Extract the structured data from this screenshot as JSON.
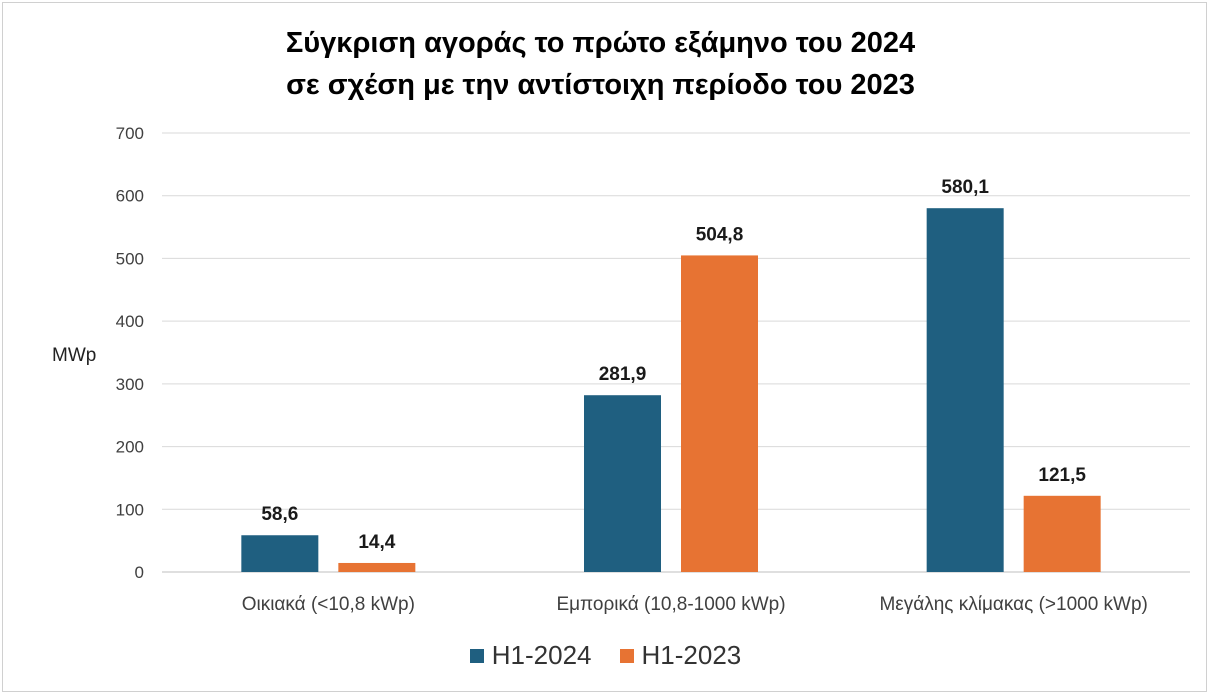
{
  "chart_data": {
    "type": "bar",
    "title": [
      "Σύγκριση αγοράς το πρώτο εξάμηνο του 2024",
      "σε σχέση με την αντίστοιχη περίοδο του 2023"
    ],
    "ylabel": "MWp",
    "xlabel": "",
    "ylim": [
      0,
      700
    ],
    "yticks": [
      0,
      100,
      200,
      300,
      400,
      500,
      600,
      700
    ],
    "grid": true,
    "legend_position": "bottom",
    "categories": [
      "Οικιακά (<10,8 kWp)",
      "Εμπορικά (10,8-1000 kWp)",
      "Μεγάλης κλίμακας (>1000 kWp)"
    ],
    "series": [
      {
        "name": "H1-2024",
        "color": "#1f5f80",
        "values": [
          58.6,
          281.9,
          580.1
        ],
        "labels": [
          "58,6",
          "281,9",
          "580,1"
        ]
      },
      {
        "name": "H1-2023",
        "color": "#e77333",
        "values": [
          14.4,
          504.8,
          121.5
        ],
        "labels": [
          "14,4",
          "504,8",
          "121,5"
        ]
      }
    ]
  }
}
